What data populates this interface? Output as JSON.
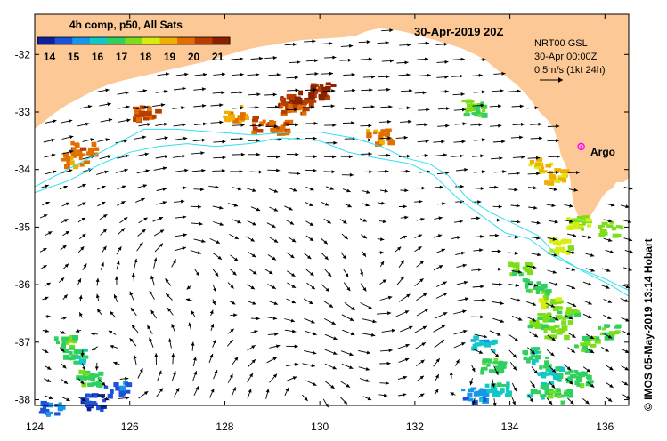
{
  "map": {
    "title": "30-Apr-2019 20Z",
    "colorbar": {
      "title": "4h comp, p50, All Sats",
      "tick_labels": [
        "14",
        "15",
        "16",
        "17",
        "18",
        "19",
        "20",
        "21"
      ],
      "min": 13.5,
      "max": 21.5,
      "palette": [
        "#10209c",
        "#1c52d8",
        "#1896e8",
        "#10c8c8",
        "#30d060",
        "#7cde18",
        "#d8ec10",
        "#f0b000",
        "#e06e00",
        "#b83e00",
        "#8a2200"
      ]
    },
    "longitude_ticks": [
      "124",
      "126",
      "128",
      "130",
      "132",
      "134",
      "136"
    ],
    "latitude_ticks": [
      "-32",
      "-33",
      "-34",
      "-35",
      "-36",
      "-37",
      "-38"
    ],
    "extent": {
      "lon_min": 124,
      "lon_max": 136.5,
      "lat_min": -38.1,
      "lat_max": -31.3
    },
    "model_label_1": "NRT00 GSL",
    "model_label_2": "30-Apr 00:00Z",
    "scale_label": "0.5m/s (1kt 24h)",
    "argo": {
      "label": "Argo",
      "lon": 135.5,
      "lat": -33.6,
      "color": "#ff00ff"
    },
    "credit": "© IMOS 05-May-2019 13:14 Hobart",
    "colors": {
      "land": "#fcc996",
      "contour": "#30e0f0",
      "frame": "#000000",
      "sea": "#ffffff"
    },
    "sst_patches": [
      {
        "lon": 129.2,
        "lat": -32.8,
        "temp": 20.5
      },
      {
        "lon": 129.4,
        "lat": -32.9,
        "temp": 20.0
      },
      {
        "lon": 130.0,
        "lat": -32.6,
        "temp": 21.0
      },
      {
        "lon": 129.6,
        "lat": -32.7,
        "temp": 20.8
      },
      {
        "lon": 128.8,
        "lat": -33.2,
        "temp": 20.0
      },
      {
        "lon": 129.1,
        "lat": -33.25,
        "temp": 19.8
      },
      {
        "lon": 126.3,
        "lat": -33.0,
        "temp": 20.0
      },
      {
        "lon": 125.0,
        "lat": -33.6,
        "temp": 19.8
      },
      {
        "lon": 124.8,
        "lat": -33.8,
        "temp": 19.5
      },
      {
        "lon": 131.2,
        "lat": -33.4,
        "temp": 19.5
      },
      {
        "lon": 128.2,
        "lat": -33.0,
        "temp": 19.3
      },
      {
        "lon": 134.6,
        "lat": -33.9,
        "temp": 18.5
      },
      {
        "lon": 134.9,
        "lat": -34.1,
        "temp": 18.7
      },
      {
        "lon": 133.2,
        "lat": -32.9,
        "temp": 17.3
      },
      {
        "lon": 134.5,
        "lat": -36.0,
        "temp": 17.0
      },
      {
        "lon": 134.2,
        "lat": -35.7,
        "temp": 17.4
      },
      {
        "lon": 134.8,
        "lat": -36.3,
        "temp": 17.8
      },
      {
        "lon": 134.6,
        "lat": -36.6,
        "temp": 17.2
      },
      {
        "lon": 134.9,
        "lat": -36.8,
        "temp": 17.5
      },
      {
        "lon": 135.2,
        "lat": -36.5,
        "temp": 17.2
      },
      {
        "lon": 135.4,
        "lat": -34.9,
        "temp": 17.8
      },
      {
        "lon": 136.1,
        "lat": -35.0,
        "temp": 17.5
      },
      {
        "lon": 135.0,
        "lat": -35.3,
        "temp": 18.2
      },
      {
        "lon": 134.5,
        "lat": -37.2,
        "temp": 16.6
      },
      {
        "lon": 134.8,
        "lat": -37.5,
        "temp": 16.2
      },
      {
        "lon": 134.6,
        "lat": -37.8,
        "temp": 16.6
      },
      {
        "lon": 135.0,
        "lat": -37.9,
        "temp": 17.0
      },
      {
        "lon": 133.4,
        "lat": -37.0,
        "temp": 16.0
      },
      {
        "lon": 133.2,
        "lat": -37.9,
        "temp": 15.3
      },
      {
        "lon": 133.7,
        "lat": -37.8,
        "temp": 16.2
      },
      {
        "lon": 133.6,
        "lat": -37.4,
        "temp": 16.8
      },
      {
        "lon": 135.4,
        "lat": -37.6,
        "temp": 16.8
      },
      {
        "lon": 135.6,
        "lat": -37.0,
        "temp": 17.3
      },
      {
        "lon": 136.0,
        "lat": -36.8,
        "temp": 17.0
      },
      {
        "lon": 124.6,
        "lat": -37.0,
        "temp": 17.0
      },
      {
        "lon": 124.8,
        "lat": -37.2,
        "temp": 16.5
      },
      {
        "lon": 125.1,
        "lat": -37.6,
        "temp": 16.8
      },
      {
        "lon": 125.2,
        "lat": -38.0,
        "temp": 14.3
      },
      {
        "lon": 124.3,
        "lat": -38.1,
        "temp": 14.8
      },
      {
        "lon": 125.7,
        "lat": -37.8,
        "temp": 14.8
      }
    ],
    "contours": [
      [
        [
          124.0,
          -34.4
        ],
        [
          124.7,
          -34.2
        ],
        [
          125.4,
          -33.9
        ],
        [
          126.0,
          -33.7
        ],
        [
          126.6,
          -33.6
        ],
        [
          127.2,
          -33.55
        ],
        [
          127.8,
          -33.6
        ],
        [
          128.5,
          -33.55
        ],
        [
          129.2,
          -33.45
        ],
        [
          130.0,
          -33.5
        ],
        [
          130.6,
          -33.7
        ],
        [
          131.2,
          -33.8
        ],
        [
          131.9,
          -33.9
        ],
        [
          132.4,
          -34.1
        ],
        [
          132.9,
          -34.5
        ],
        [
          133.4,
          -34.8
        ],
        [
          133.9,
          -35.1
        ],
        [
          134.4,
          -35.2
        ],
        [
          134.9,
          -35.5
        ],
        [
          135.4,
          -35.7
        ],
        [
          136.0,
          -35.9
        ],
        [
          136.5,
          -36.1
        ]
      ],
      [
        [
          124.0,
          -34.3
        ],
        [
          124.8,
          -33.95
        ],
        [
          125.5,
          -33.65
        ],
        [
          126.3,
          -33.3
        ],
        [
          127.0,
          -33.3
        ],
        [
          127.8,
          -33.35
        ],
        [
          128.6,
          -33.4
        ],
        [
          129.4,
          -33.35
        ],
        [
          130.0,
          -33.35
        ],
        [
          130.7,
          -33.45
        ],
        [
          131.3,
          -33.6
        ],
        [
          131.8,
          -33.8
        ],
        [
          132.3,
          -33.9
        ],
        [
          132.7,
          -34.1
        ],
        [
          133.1,
          -34.5
        ],
        [
          133.6,
          -34.75
        ],
        [
          134.1,
          -34.95
        ],
        [
          134.6,
          -35.15
        ],
        [
          135.0,
          -35.5
        ],
        [
          135.5,
          -35.75
        ],
        [
          136.1,
          -36.0
        ],
        [
          136.5,
          -36.2
        ]
      ]
    ]
  }
}
